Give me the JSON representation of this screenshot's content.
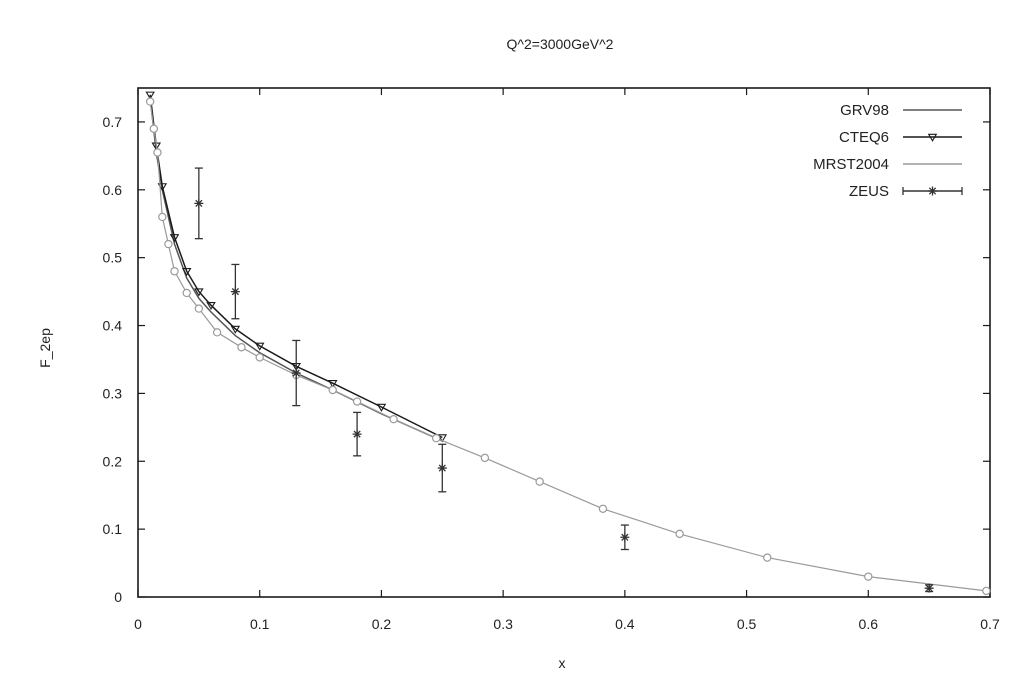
{
  "chart_data": {
    "type": "line",
    "title": "Q^2=3000GeV^2",
    "xlabel": "x",
    "ylabel": "F_2ep",
    "xlim": [
      0,
      0.7
    ],
    "ylim": [
      0,
      0.75
    ],
    "xticks": [
      0,
      0.1,
      0.2,
      0.3,
      0.4,
      0.5,
      0.6,
      0.7
    ],
    "yticks": [
      0,
      0.1,
      0.2,
      0.3,
      0.4,
      0.5,
      0.6,
      0.7
    ],
    "grid": false,
    "legend_position": "top-right",
    "series": [
      {
        "name": "GRV98",
        "style": "line",
        "color": "#555555",
        "x": [
          0.01,
          0.015,
          0.02,
          0.03,
          0.04,
          0.05,
          0.06,
          0.08,
          0.1,
          0.13,
          0.16,
          0.2,
          0.25
        ],
        "y": [
          0.735,
          0.655,
          0.6,
          0.52,
          0.47,
          0.44,
          0.42,
          0.385,
          0.36,
          0.33,
          0.305,
          0.27,
          0.23
        ]
      },
      {
        "name": "CTEQ6",
        "style": "line-triangle",
        "color": "#1a1a1a",
        "x": [
          0.01,
          0.015,
          0.02,
          0.03,
          0.04,
          0.05,
          0.06,
          0.08,
          0.1,
          0.13,
          0.16,
          0.2,
          0.25
        ],
        "y": [
          0.74,
          0.665,
          0.605,
          0.53,
          0.48,
          0.45,
          0.43,
          0.395,
          0.37,
          0.34,
          0.315,
          0.28,
          0.235
        ]
      },
      {
        "name": "MRST2004",
        "style": "line-circle",
        "color": "#9a9a9a",
        "x": [
          0.01,
          0.013,
          0.016,
          0.02,
          0.025,
          0.03,
          0.04,
          0.05,
          0.065,
          0.085,
          0.1,
          0.13,
          0.16,
          0.18,
          0.21,
          0.245,
          0.285,
          0.33,
          0.382,
          0.445,
          0.517,
          0.6,
          0.697
        ],
        "y": [
          0.73,
          0.69,
          0.655,
          0.56,
          0.52,
          0.48,
          0.448,
          0.425,
          0.39,
          0.368,
          0.353,
          0.327,
          0.305,
          0.288,
          0.262,
          0.234,
          0.205,
          0.17,
          0.13,
          0.093,
          0.058,
          0.03,
          0.009
        ]
      },
      {
        "name": "ZEUS",
        "style": "errorbar-star",
        "color": "#333333",
        "x": [
          0.05,
          0.08,
          0.13,
          0.18,
          0.25,
          0.4,
          0.65
        ],
        "y": [
          0.58,
          0.45,
          0.33,
          0.24,
          0.19,
          0.088,
          0.013
        ],
        "yerr": [
          0.052,
          0.04,
          0.048,
          0.032,
          0.035,
          0.018,
          0.005
        ]
      }
    ]
  }
}
